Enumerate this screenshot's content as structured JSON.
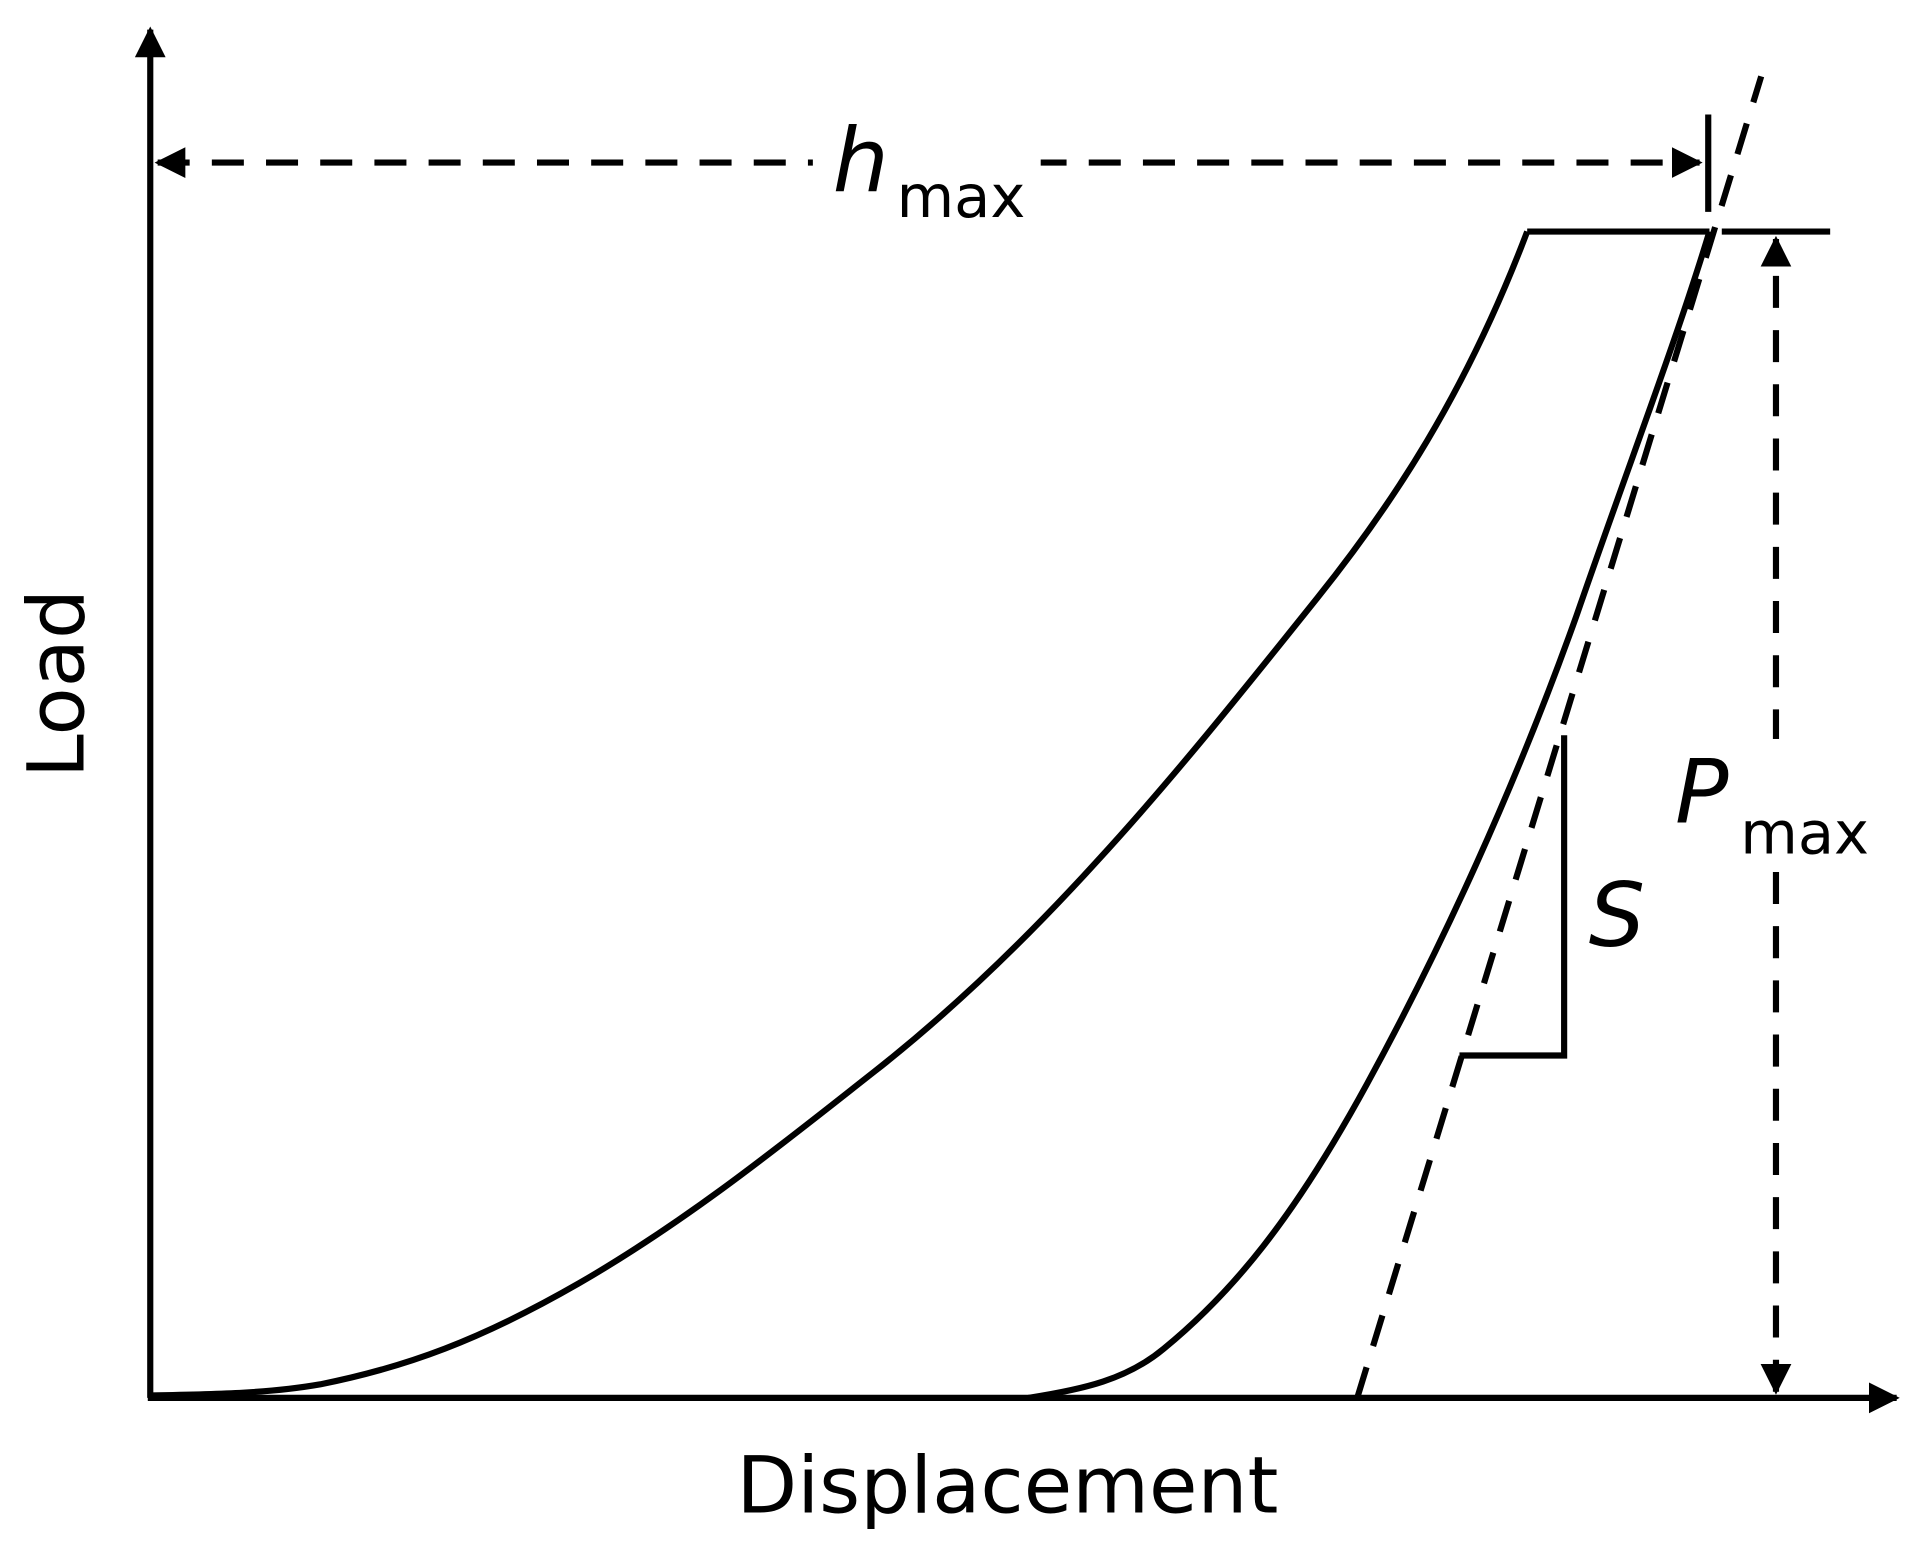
{
  "axes": {
    "x_label": "Displacement",
    "y_label": "Load"
  },
  "annotations": {
    "h_max": {
      "symbol": "h",
      "subscript": "max"
    },
    "p_max": {
      "symbol": "P",
      "subscript": "max"
    },
    "stiffness": "S"
  }
}
